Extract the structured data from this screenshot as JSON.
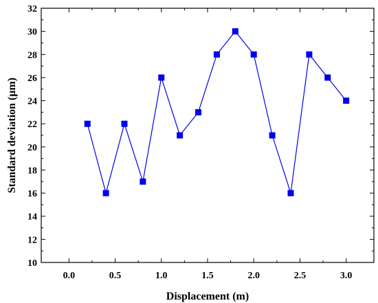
{
  "chart_data": {
    "type": "line",
    "xlabel": "Displacement (m)",
    "ylabel": "Standard deviation (μm)",
    "xlim": [
      -0.3,
      3.3
    ],
    "ylim": [
      10,
      32
    ],
    "x_ticks": [
      "0.0",
      "0.5",
      "1.0",
      "1.5",
      "2.0",
      "2.5",
      "3.0"
    ],
    "y_ticks": [
      "10",
      "12",
      "14",
      "16",
      "18",
      "20",
      "22",
      "24",
      "26",
      "28",
      "30",
      "32"
    ],
    "grid": false,
    "marker": "square",
    "colors": {
      "series": "#0000ee",
      "axes": "#000000"
    },
    "series": [
      {
        "x": [
          0.2,
          0.4,
          0.6,
          0.8,
          1.0,
          1.2,
          1.4,
          1.6,
          1.8,
          2.0,
          2.2,
          2.4,
          2.6,
          2.8,
          3.0
        ],
        "y": [
          22,
          16,
          22,
          17,
          26,
          21,
          23,
          28,
          30,
          28,
          21,
          16,
          28,
          26,
          24
        ]
      }
    ]
  }
}
